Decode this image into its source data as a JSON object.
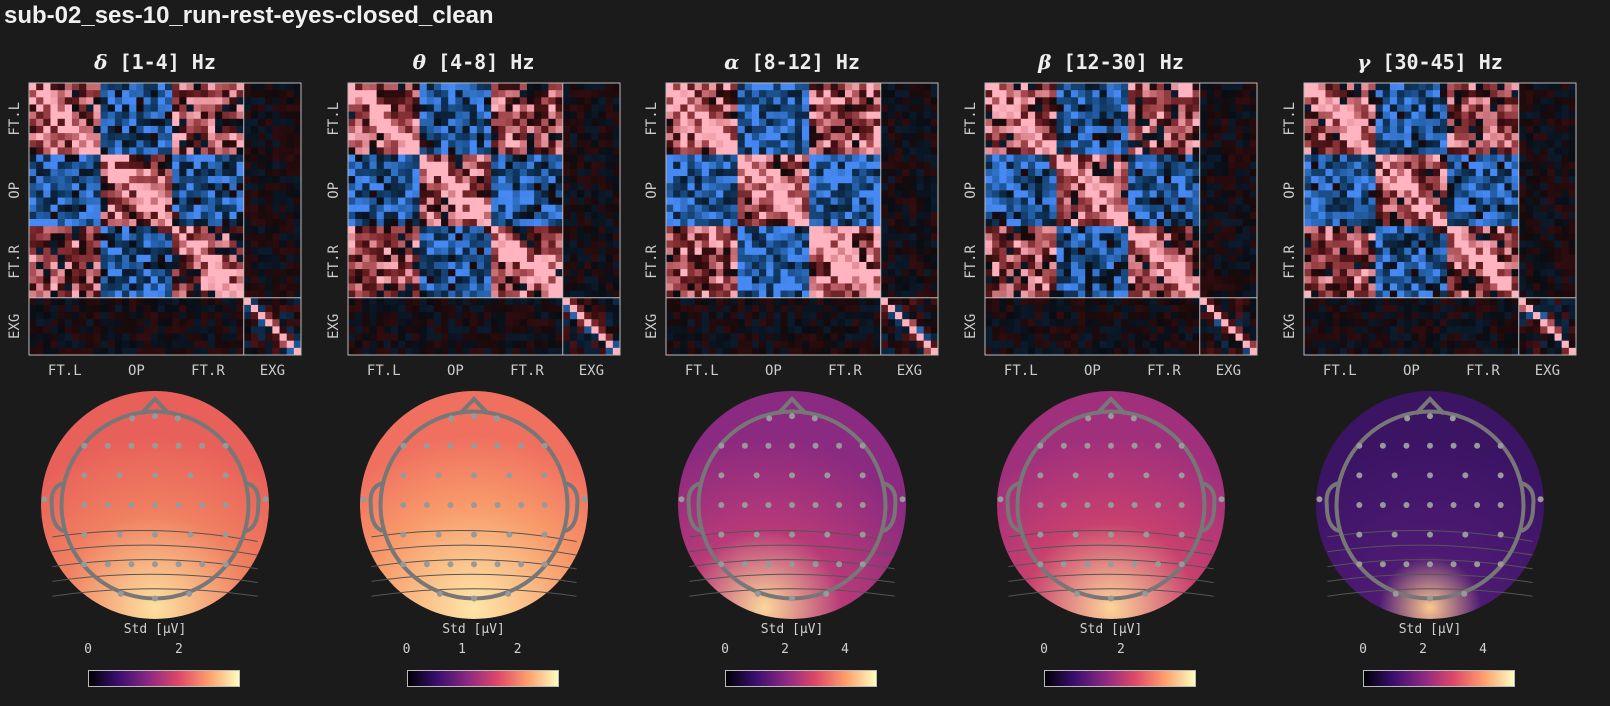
{
  "title": "sub-02_ses-10_run-rest-eyes-closed_clean",
  "chart_data": {
    "type": "heatmap",
    "channel_groups": [
      "FT.L",
      "OP",
      "FT.R",
      "EXG"
    ],
    "colorbar_label": "Std [μV]",
    "colormap_matrix": "diverging blue-black-pink",
    "colormap_topomap": "magma",
    "bands": [
      {
        "symbol": "δ",
        "range": "[1-4] Hz",
        "cbar_ticks": [
          "0",
          "2"
        ],
        "cbar_max": 3.3
      },
      {
        "symbol": "θ",
        "range": "[4-8] Hz",
        "cbar_ticks": [
          "0",
          "1",
          "2"
        ],
        "cbar_max": 2.7
      },
      {
        "symbol": "α",
        "range": "[8-12] Hz",
        "cbar_ticks": [
          "0",
          "2",
          "4"
        ],
        "cbar_max": 5.0
      },
      {
        "symbol": "β",
        "range": "[12-30] Hz",
        "cbar_ticks": [
          "0",
          "2"
        ],
        "cbar_max": 3.9
      },
      {
        "symbol": "γ",
        "range": "[30-45] Hz",
        "cbar_ticks": [
          "0",
          "2",
          "4"
        ],
        "cbar_max": 5.0
      }
    ]
  }
}
